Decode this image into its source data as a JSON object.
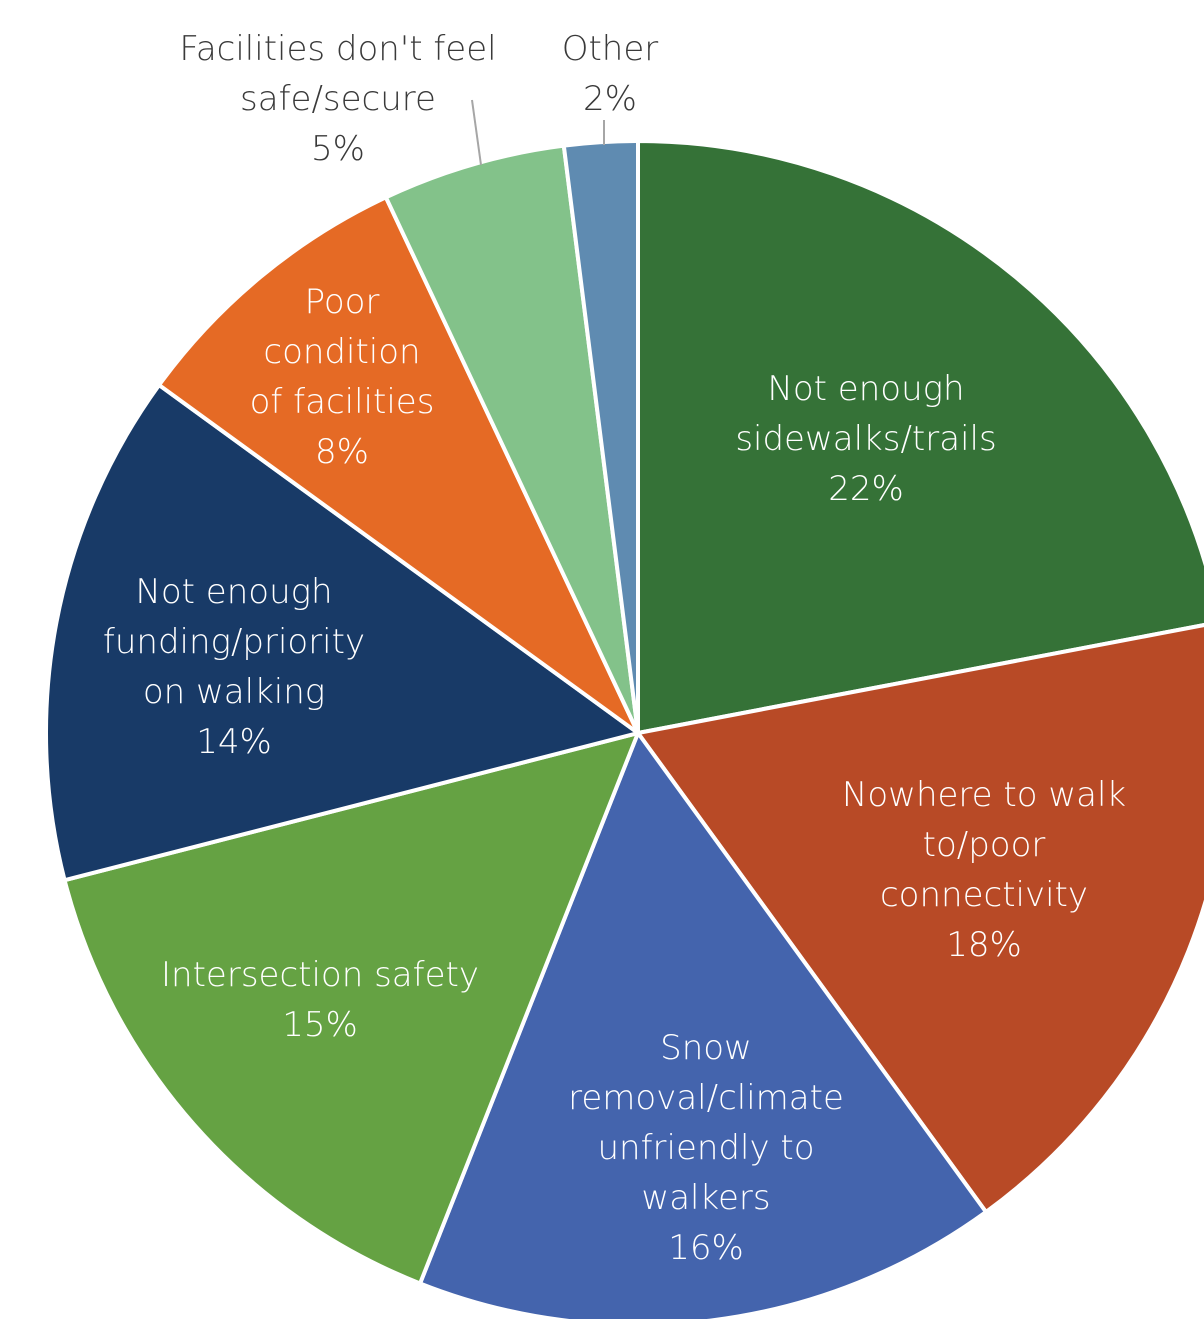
{
  "chart_data": {
    "type": "pie",
    "title": "",
    "slices": [
      {
        "category": "Not enough sidewalks/trails",
        "value": 22,
        "pct_label": "22%",
        "label_lines": [
          "Not enough",
          "sidewalks/trails",
          "22%"
        ],
        "color": "#357237",
        "label_color": "#ffffff"
      },
      {
        "category": "Nowhere to walk to/poor connectivity",
        "value": 18,
        "pct_label": "18%",
        "label_lines": [
          "Nowhere to walk",
          "to/poor",
          "connectivity",
          "18%"
        ],
        "color": "#B84A26",
        "label_color": "#ffffff"
      },
      {
        "category": "Snow removal/climate unfriendly to walkers",
        "value": 16,
        "pct_label": "16%",
        "label_lines": [
          "Snow",
          "removal/climate",
          "unfriendly to",
          "walkers",
          "16%"
        ],
        "color": "#4464AD",
        "label_color": "#ffffff"
      },
      {
        "category": "Intersection safety",
        "value": 15,
        "pct_label": "15%",
        "label_lines": [
          "Intersection safety",
          "15%"
        ],
        "color": "#65A243",
        "label_color": "#ffffff"
      },
      {
        "category": "Not enough funding/priority on walking",
        "value": 14,
        "pct_label": "14%",
        "label_lines": [
          "Not enough",
          "funding/priority",
          "on walking",
          "14%"
        ],
        "color": "#183A67",
        "label_color": "#ffffff"
      },
      {
        "category": "Poor condition of facilities",
        "value": 8,
        "pct_label": "8%",
        "label_lines": [
          "Poor",
          "condition",
          "of facilities",
          "8%"
        ],
        "color": "#E56A25",
        "label_color": "#ffffff"
      },
      {
        "category": "Facilities don't feel safe/secure",
        "value": 5,
        "pct_label": "5%",
        "label_lines": [
          "Facilities don't feel",
          "safe/secure",
          "5%"
        ],
        "color": "#83C28A",
        "label_color": "#3a3a3a"
      },
      {
        "category": "Other",
        "value": 2,
        "pct_label": "2%",
        "label_lines": [
          "Other",
          "2%"
        ],
        "color": "#5F8BB1",
        "label_color": "#3a3a3a"
      }
    ],
    "legend": "none"
  }
}
